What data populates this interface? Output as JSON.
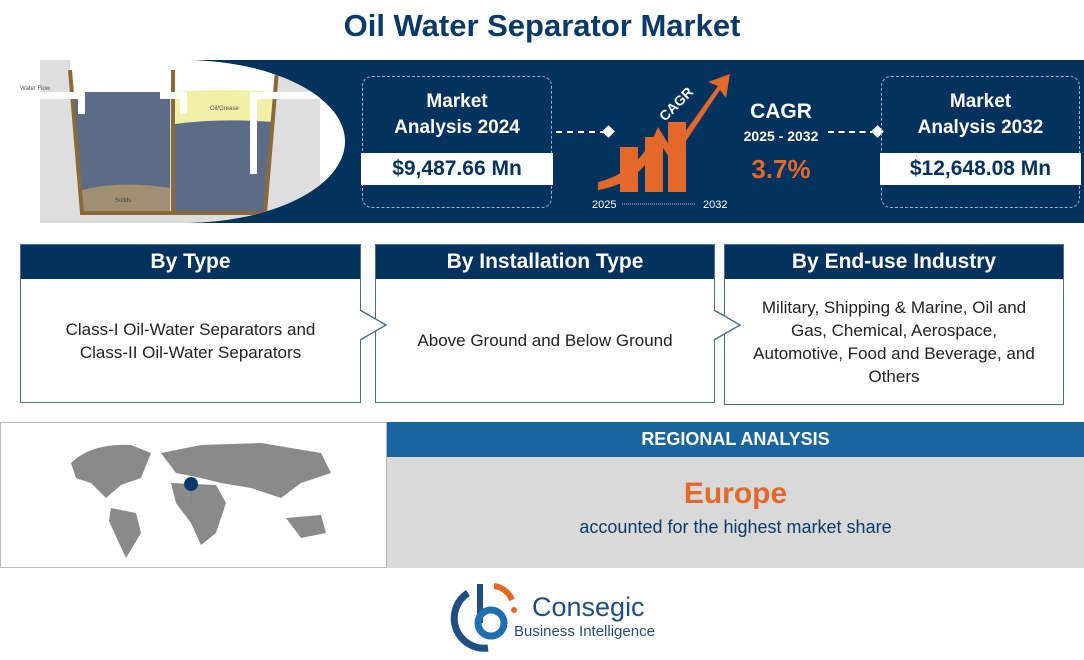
{
  "title": "Oil Water Separator Market",
  "diagram": {
    "labels": [
      "Water Flow",
      "Oil/Grease",
      "Solids"
    ]
  },
  "market_2024": {
    "label": "Market Analysis 2024",
    "value": "$9,487.66 Mn"
  },
  "cagr": {
    "arrow_label": "CAGR",
    "title": "CAGR",
    "period": "2025 - 2032",
    "value": "3.7%",
    "axis_start": "2025",
    "axis_end": "2032"
  },
  "market_2032": {
    "label": "Market Analysis 2032",
    "value": "$12,648.08 Mn"
  },
  "segments": [
    {
      "header": "By Type",
      "body": "Class-I Oil-Water Separators and Class-II Oil-Water Separators"
    },
    {
      "header": "By Installation Type",
      "body": "Above Ground and Below Ground"
    },
    {
      "header": "By End-use Industry",
      "body": "Military, Shipping & Marine, Oil and Gas, Chemical, Aerospace, Automotive, Food and Beverage, and Others"
    }
  ],
  "regional": {
    "header": "REGIONAL ANALYSIS",
    "region": "Europe",
    "text": "accounted for the highest market share"
  },
  "logo": {
    "name": "Consegic",
    "tagline": "Business Intelligence"
  },
  "colors": {
    "navy": "#03325f",
    "orange": "#e2692a",
    "blue": "#1a64a0",
    "gray": "#d9d9d9"
  }
}
